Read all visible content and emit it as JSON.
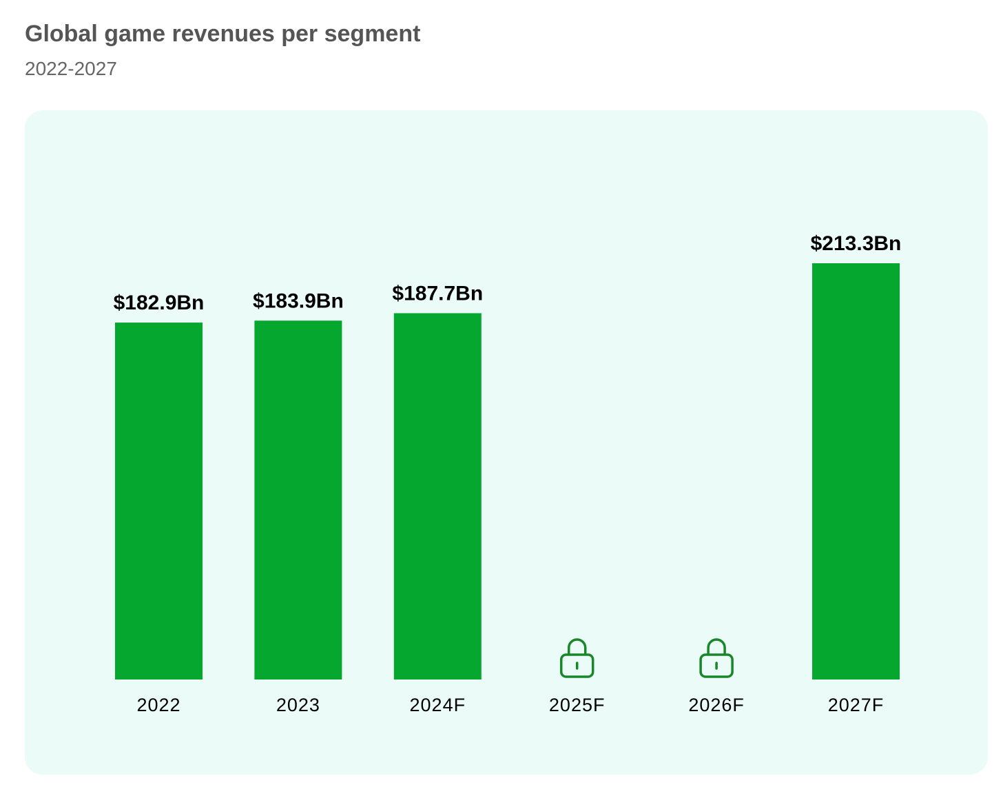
{
  "chart_data": {
    "type": "bar",
    "title": "Global game revenues per segment",
    "subtitle": "2022-2027",
    "categories": [
      "2022",
      "2023",
      "2024F",
      "2025F",
      "2026F",
      "2027F"
    ],
    "values": [
      182.9,
      183.9,
      187.7,
      null,
      null,
      213.3
    ],
    "data_labels": [
      "$182.9Bn",
      "$183.9Bn",
      "$187.7Bn",
      "",
      "",
      "$213.3Bn"
    ],
    "locked": [
      false,
      false,
      false,
      true,
      true,
      false
    ],
    "unit": "Bn USD",
    "ylim": [
      0,
      240
    ],
    "grid": false,
    "xlabel": "",
    "ylabel": "",
    "colors": {
      "bar": "#05a72f",
      "lock": "#17872a",
      "panel": "#ebfbf7"
    }
  }
}
